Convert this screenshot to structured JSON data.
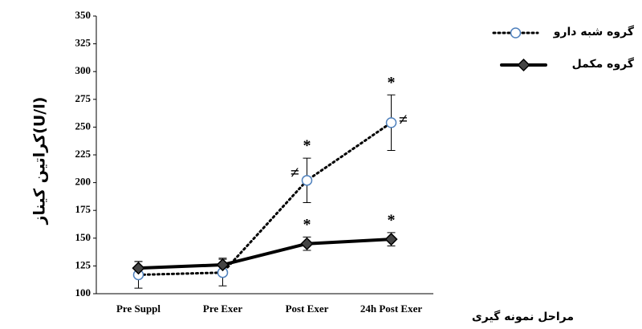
{
  "chart_data": {
    "type": "line",
    "ylabel": "کراتین کیناز(U/l)",
    "xlabel": "مراحل نمونه گیری",
    "categories": [
      "Pre Suppl",
      "Pre Exer",
      "Post Exer",
      "24h Post Exer"
    ],
    "series": [
      {
        "name": "گروه شبه دارو",
        "color": "#4f81bd",
        "line_color": "#000000",
        "dash": true,
        "marker": "circle",
        "values": [
          117,
          119,
          202,
          254
        ],
        "errors": [
          12,
          12,
          20,
          25
        ]
      },
      {
        "name": "گروه مکمل",
        "color": "#000000",
        "line_color": "#000000",
        "dash": false,
        "marker": "diamond",
        "values": [
          123,
          126,
          145,
          149
        ],
        "errors": [
          6,
          6,
          6,
          6
        ]
      }
    ],
    "annotations": [
      {
        "text": "*",
        "series": 0,
        "index": 2,
        "side": "above"
      },
      {
        "text": "≠",
        "series": 0,
        "index": 2,
        "side": "left"
      },
      {
        "text": "*",
        "series": 0,
        "index": 3,
        "side": "above"
      },
      {
        "text": "≠",
        "series": 0,
        "index": 3,
        "side": "right"
      },
      {
        "text": "*",
        "series": 1,
        "index": 2,
        "side": "above"
      },
      {
        "text": "*",
        "series": 1,
        "index": 3,
        "side": "above"
      }
    ],
    "ylim": [
      100,
      350
    ],
    "yticks": [
      100,
      125,
      150,
      175,
      200,
      225,
      250,
      275,
      300,
      325,
      350
    ]
  }
}
